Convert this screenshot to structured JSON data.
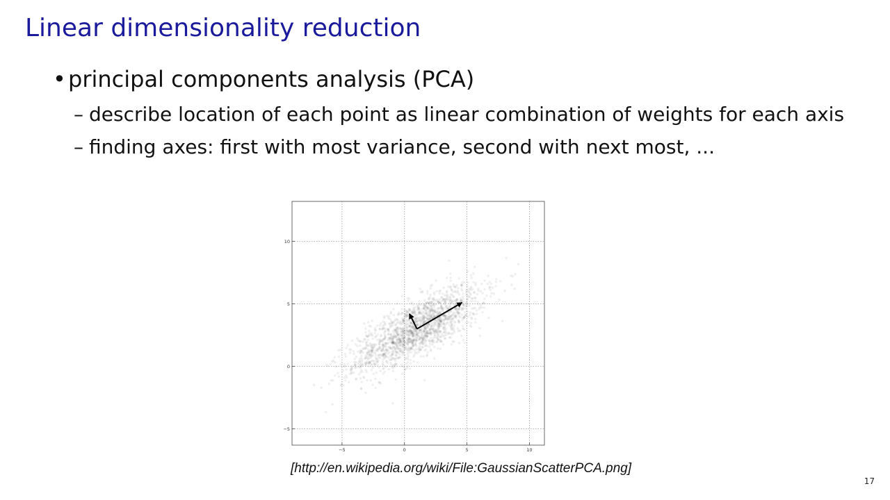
{
  "slide": {
    "title": "Linear dimensionality reduction",
    "bullet": "principal components analysis (PCA)",
    "subbullets": [
      "describe location of each point as linear combination of weights for each axis",
      "finding axes: first with most variance, second with next most, ..."
    ],
    "caption": "[http://en.wikipedia.org/wiki/File:GaussianScatterPCA.png]",
    "page_number": "17"
  },
  "chart_data": {
    "type": "scatter",
    "title": "",
    "xlabel": "",
    "ylabel": "",
    "xlim": [
      -9,
      11.2
    ],
    "ylim": [
      -6.3,
      13.2
    ],
    "x_ticks": [
      -5,
      0,
      5,
      10
    ],
    "y_ticks": [
      -5,
      0,
      5,
      10
    ],
    "x_tick_labels": [
      "−5",
      "0",
      "5",
      "10"
    ],
    "y_tick_labels": [
      "−5",
      "0",
      "5",
      "10"
    ],
    "grid": true,
    "point_color": "#000000",
    "arrow_color": "#000000",
    "distribution": {
      "mean": [
        1,
        3
      ],
      "major_axis_angle_deg": 30,
      "major_std": 3,
      "minor_std": 1,
      "n_points": 1800
    },
    "arrows": [
      {
        "from": [
          1,
          3
        ],
        "to": [
          4.6,
          5.1
        ]
      },
      {
        "from": [
          1,
          3
        ],
        "to": [
          0.4,
          4.2
        ]
      }
    ]
  }
}
